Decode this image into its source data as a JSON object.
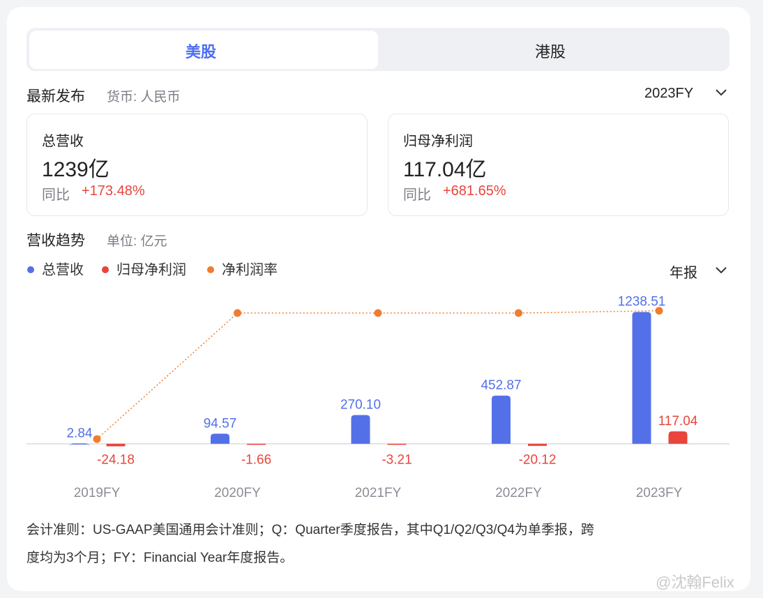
{
  "tabs": [
    "美股",
    "港股"
  ],
  "latest": {
    "title": "最新发布",
    "currency": "货币: 人民币",
    "period": "2023FY"
  },
  "cards": [
    {
      "label": "总营收",
      "value": "1239亿",
      "yoy_label": "同比",
      "yoy": "+173.48%"
    },
    {
      "label": "归母净利润",
      "value": "117.04亿",
      "yoy_label": "同比",
      "yoy": "+681.65%"
    }
  ],
  "trend": {
    "title": "营收趋势",
    "unit": "单位: 亿元",
    "period_select": "年报"
  },
  "chart_data": {
    "type": "bar",
    "categories": [
      "2019FY",
      "2020FY",
      "2021FY",
      "2022FY",
      "2023FY"
    ],
    "series": [
      {
        "name": "总营收",
        "color": "#5470e8",
        "values": [
          2.84,
          94.57,
          270.1,
          452.87,
          1238.51
        ],
        "value_labels": [
          "2.84",
          "94.57",
          "270.10",
          "452.87",
          "1238.51"
        ]
      },
      {
        "name": "归母净利润",
        "color": "#e8453c",
        "values": [
          -24.18,
          -1.66,
          -3.21,
          -20.12,
          117.04
        ]
      },
      {
        "name": "净利润率",
        "color": "#ee7d2f",
        "type": "line",
        "axis": "y2",
        "values": [
          0.96,
          8.86,
          8.86,
          8.86,
          9.0
        ]
      }
    ],
    "ylim": [
      -100,
      1400
    ],
    "y2lim": [
      0,
      10
    ]
  },
  "footnote": [
    "会计准则：US-GAAP美国通用会计准则；Q：Quarter季度报告，其中Q1/Q2/Q3/Q4为单季报，跨",
    "度均为3个月；FY：Financial Year年度报告。"
  ],
  "watermark": "@沈翰Felix"
}
